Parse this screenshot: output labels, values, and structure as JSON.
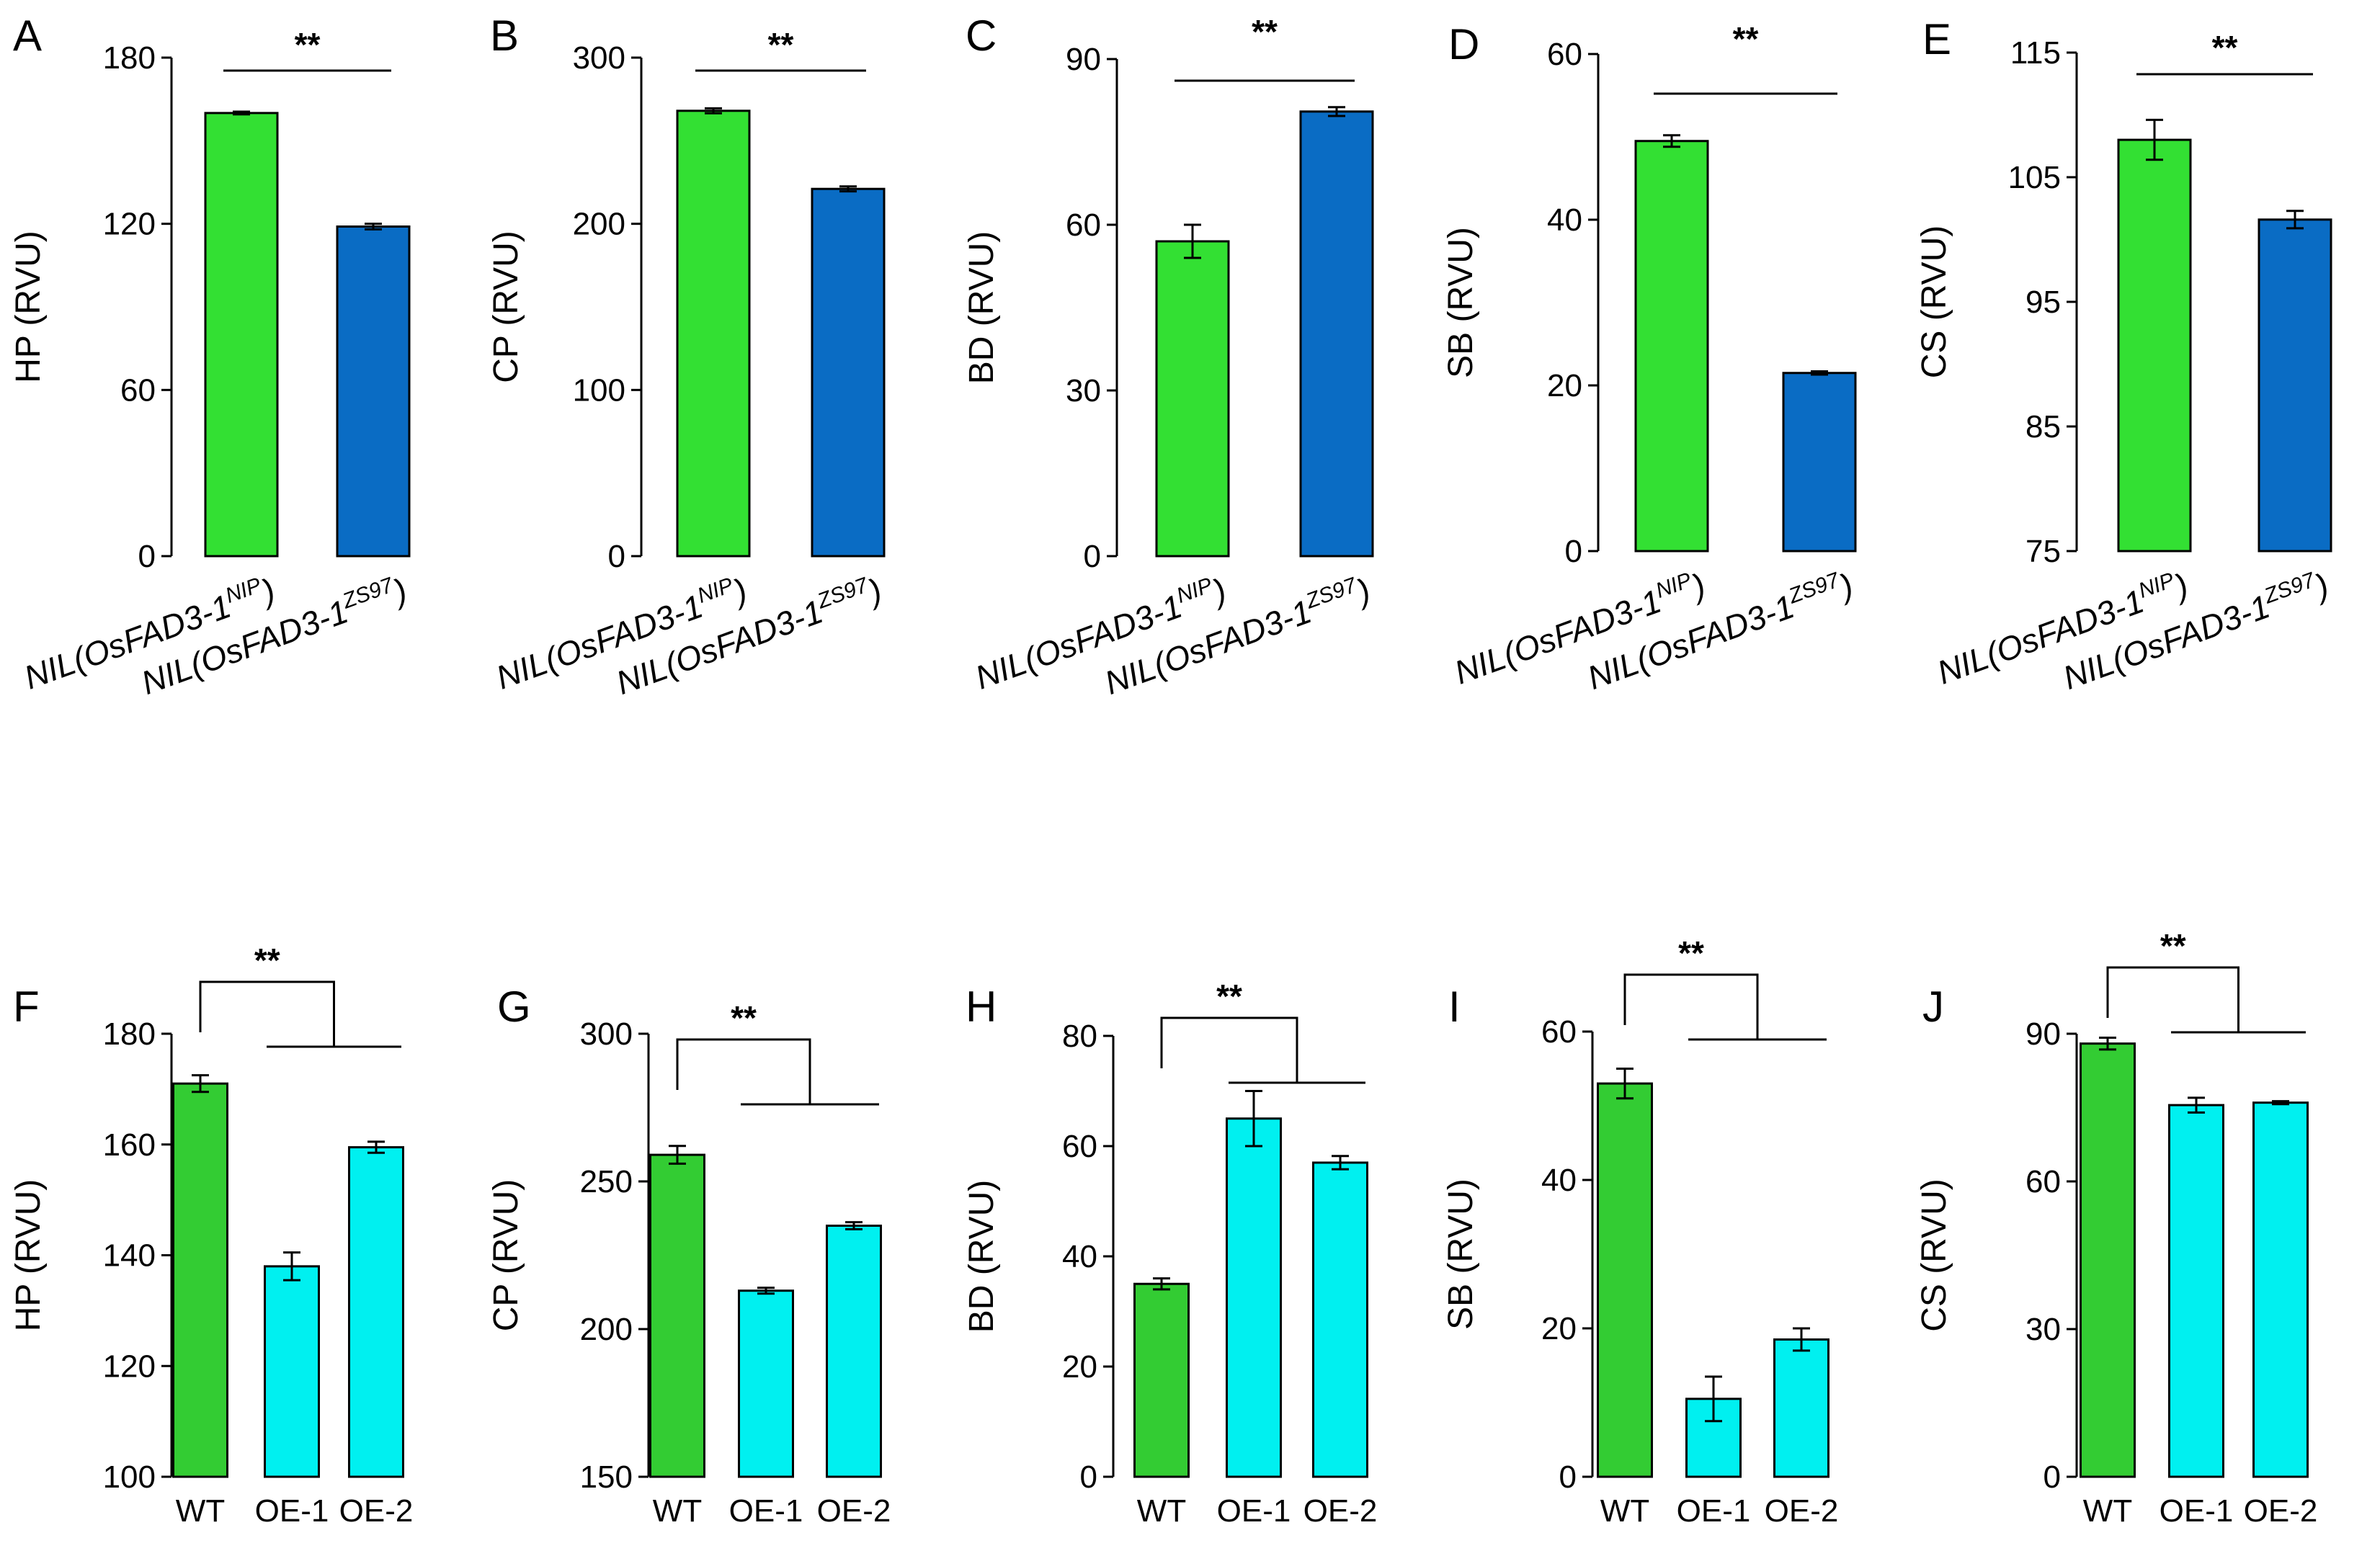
{
  "chart_data": [
    {
      "panel": "A",
      "type": "bar",
      "ylabel": "HP (RVU)",
      "ylim": [
        0,
        180
      ],
      "yticks": [
        0,
        60,
        120,
        180
      ],
      "categories": [
        "NIL(OsFAD3-1NIP)",
        "NIL(OsFAD3-1ZS97)"
      ],
      "labels": [
        {
          "prefix": "NIL(OsFAD3-1",
          "sup": "NIP",
          "suffix": ")"
        },
        {
          "prefix": "NIL(OsFAD3-1",
          "sup": "ZS97",
          "suffix": ")"
        }
      ],
      "values": [
        160,
        119
      ],
      "errors": [
        0.5,
        1
      ],
      "colors": [
        "#33e033",
        "#0a6cc4"
      ],
      "significance": "**",
      "bracket": "pair"
    },
    {
      "panel": "B",
      "type": "bar",
      "ylabel": "CP (RVU)",
      "ylim": [
        0,
        300
      ],
      "yticks": [
        0,
        100,
        200,
        300
      ],
      "categories": [
        "NIL(OsFAD3-1NIP)",
        "NIL(OsFAD3-1ZS97)"
      ],
      "labels": [
        {
          "prefix": "NIL(OsFAD3-1",
          "sup": "NIP",
          "suffix": ")"
        },
        {
          "prefix": "NIL(OsFAD3-1",
          "sup": "ZS97",
          "suffix": ")"
        }
      ],
      "values": [
        268,
        221
      ],
      "errors": [
        1.5,
        1.5
      ],
      "colors": [
        "#33e033",
        "#0a6cc4"
      ],
      "significance": "**",
      "bracket": "pair"
    },
    {
      "panel": "C",
      "type": "bar",
      "ylabel": "BD (RVU)",
      "ylim": [
        0,
        90
      ],
      "yticks": [
        0,
        30,
        60,
        90
      ],
      "categories": [
        "NIL(OsFAD3-1NIP)",
        "NIL(OsFAD3-1ZS97)"
      ],
      "labels": [
        {
          "prefix": "NIL(OsFAD3-1",
          "sup": "NIP",
          "suffix": ")"
        },
        {
          "prefix": "NIL(OsFAD3-1",
          "sup": "ZS97",
          "suffix": ")"
        }
      ],
      "values": [
        57,
        80.5
      ],
      "errors": [
        3,
        0.8
      ],
      "colors": [
        "#33e033",
        "#0a6cc4"
      ],
      "significance": "**",
      "bracket": "pair"
    },
    {
      "panel": "D",
      "type": "bar",
      "ylabel": "SB (RVU)",
      "ylim": [
        0,
        60
      ],
      "yticks": [
        0,
        20,
        40,
        60
      ],
      "categories": [
        "NIL(OsFAD3-1NIP)",
        "NIL(OsFAD3-1ZS97)"
      ],
      "labels": [
        {
          "prefix": "NIL(OsFAD3-1",
          "sup": "NIP",
          "suffix": ")"
        },
        {
          "prefix": "NIL(OsFAD3-1",
          "sup": "ZS97",
          "suffix": ")"
        }
      ],
      "values": [
        49.5,
        21.5
      ],
      "errors": [
        0.7,
        0.2
      ],
      "colors": [
        "#33e033",
        "#0a6cc4"
      ],
      "significance": "**",
      "bracket": "pair"
    },
    {
      "panel": "E",
      "type": "bar",
      "ylabel": "CS (RVU)",
      "ylim": [
        75,
        115
      ],
      "yticks": [
        75,
        85,
        95,
        105,
        115
      ],
      "categories": [
        "NIL(OsFAD3-1NIP)",
        "NIL(OsFAD3-1ZS97)"
      ],
      "labels": [
        {
          "prefix": "NIL(OsFAD3-1",
          "sup": "NIP",
          "suffix": ")"
        },
        {
          "prefix": "NIL(OsFAD3-1",
          "sup": "ZS97",
          "suffix": ")"
        }
      ],
      "values": [
        108,
        101.6
      ],
      "errors": [
        1.6,
        0.7
      ],
      "colors": [
        "#33e033",
        "#0a6cc4"
      ],
      "significance": "**",
      "bracket": "pair"
    },
    {
      "panel": "F",
      "type": "bar",
      "ylabel": "HP (RVU)",
      "ylim": [
        100,
        180
      ],
      "yticks": [
        100,
        120,
        140,
        160,
        180
      ],
      "categories": [
        "WT",
        "OE-1",
        "OE-2"
      ],
      "values": [
        171,
        138,
        159.5
      ],
      "errors": [
        1.5,
        2.5,
        1
      ],
      "colors": [
        "#33cc33",
        "#00f0f0",
        "#00f0f0"
      ],
      "significance": "**",
      "bracket": "wt-vs-oe"
    },
    {
      "panel": "G",
      "type": "bar",
      "ylabel": "CP (RVU)",
      "ylim": [
        150,
        300
      ],
      "yticks": [
        150,
        200,
        250,
        300
      ],
      "categories": [
        "WT",
        "OE-1",
        "OE-2"
      ],
      "values": [
        259,
        213,
        235
      ],
      "errors": [
        3,
        1,
        1.2
      ],
      "colors": [
        "#33cc33",
        "#00f0f0",
        "#00f0f0"
      ],
      "significance": "**",
      "bracket": "wt-vs-oe"
    },
    {
      "panel": "H",
      "type": "bar",
      "ylabel": "BD (RVU)",
      "ylim": [
        0,
        80
      ],
      "yticks": [
        0,
        20,
        40,
        60,
        80
      ],
      "categories": [
        "WT",
        "OE-1",
        "OE-2"
      ],
      "values": [
        35,
        65,
        57
      ],
      "errors": [
        1,
        5,
        1.2
      ],
      "colors": [
        "#33cc33",
        "#00f0f0",
        "#00f0f0"
      ],
      "significance": "**",
      "bracket": "wt-vs-oe"
    },
    {
      "panel": "I",
      "type": "bar",
      "ylabel": "SB (RVU)",
      "ylim": [
        0,
        60
      ],
      "yticks": [
        0,
        20,
        40,
        60
      ],
      "categories": [
        "WT",
        "OE-1",
        "OE-2"
      ],
      "values": [
        53,
        10.5,
        18.5
      ],
      "errors": [
        2,
        3,
        1.5
      ],
      "colors": [
        "#33cc33",
        "#00f0f0",
        "#00f0f0"
      ],
      "significance": "**",
      "bracket": "wt-vs-oe"
    },
    {
      "panel": "J",
      "type": "bar",
      "ylabel": "CS (RVU)",
      "ylim": [
        0,
        90
      ],
      "yticks": [
        0,
        30,
        60,
        90
      ],
      "categories": [
        "WT",
        "OE-1",
        "OE-2"
      ],
      "values": [
        88,
        75.5,
        76
      ],
      "errors": [
        1.2,
        1.5,
        0.3
      ],
      "colors": [
        "#33cc33",
        "#00f0f0",
        "#00f0f0"
      ],
      "significance": "**",
      "bracket": "wt-vs-oe"
    }
  ]
}
